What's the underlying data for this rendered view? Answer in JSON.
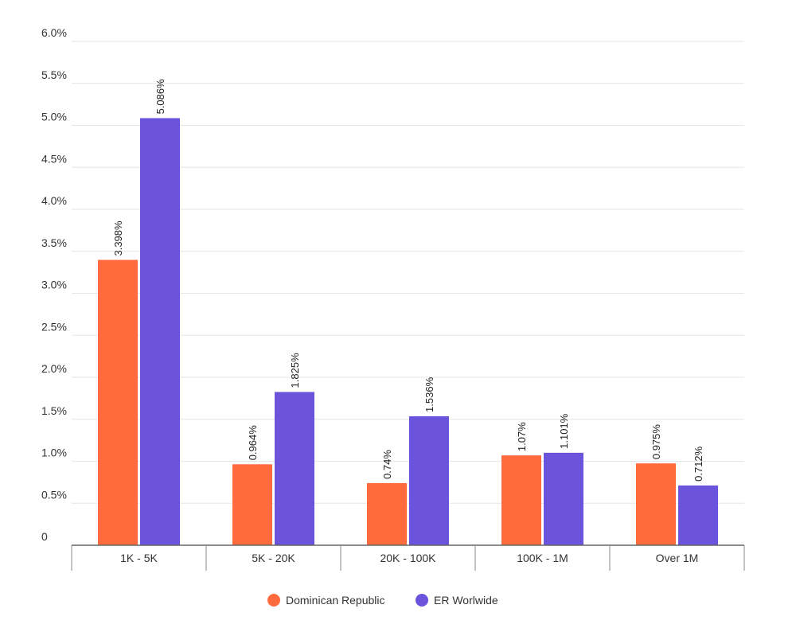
{
  "chart_data": {
    "type": "bar",
    "title": "",
    "xlabel": "",
    "ylabel": "",
    "categories": [
      "1K - 5K",
      "5K - 20K",
      "20K - 100K",
      "100K - 1M",
      "Over 1M"
    ],
    "series": [
      {
        "name": "Dominican Republic",
        "color": "#ff6b3d",
        "values": [
          3.398,
          0.964,
          0.74,
          1.07,
          0.975
        ],
        "labels": [
          "3.398%",
          "0.964%",
          "0.74%",
          "1.07%",
          "0.975%"
        ]
      },
      {
        "name": "ER Worlwide",
        "color": "#6c53dc",
        "values": [
          5.086,
          1.825,
          1.536,
          1.101,
          0.712
        ],
        "labels": [
          "5.086%",
          "1.825%",
          "1.536%",
          "1.101%",
          "0.712%"
        ]
      }
    ],
    "ylim": [
      0,
      6.0
    ],
    "yticks": [
      0,
      0.5,
      1.0,
      1.5,
      2.0,
      2.5,
      3.0,
      3.5,
      4.0,
      4.5,
      5.0,
      5.5,
      6.0
    ],
    "ytick_labels": [
      "0",
      "0.5%",
      "1.0%",
      "1.5%",
      "2.0%",
      "2.5%",
      "3.0%",
      "3.5%",
      "4.0%",
      "4.5%",
      "5.0%",
      "5.5%",
      "6.0%"
    ],
    "grid": true,
    "legend": "bottom-center"
  }
}
